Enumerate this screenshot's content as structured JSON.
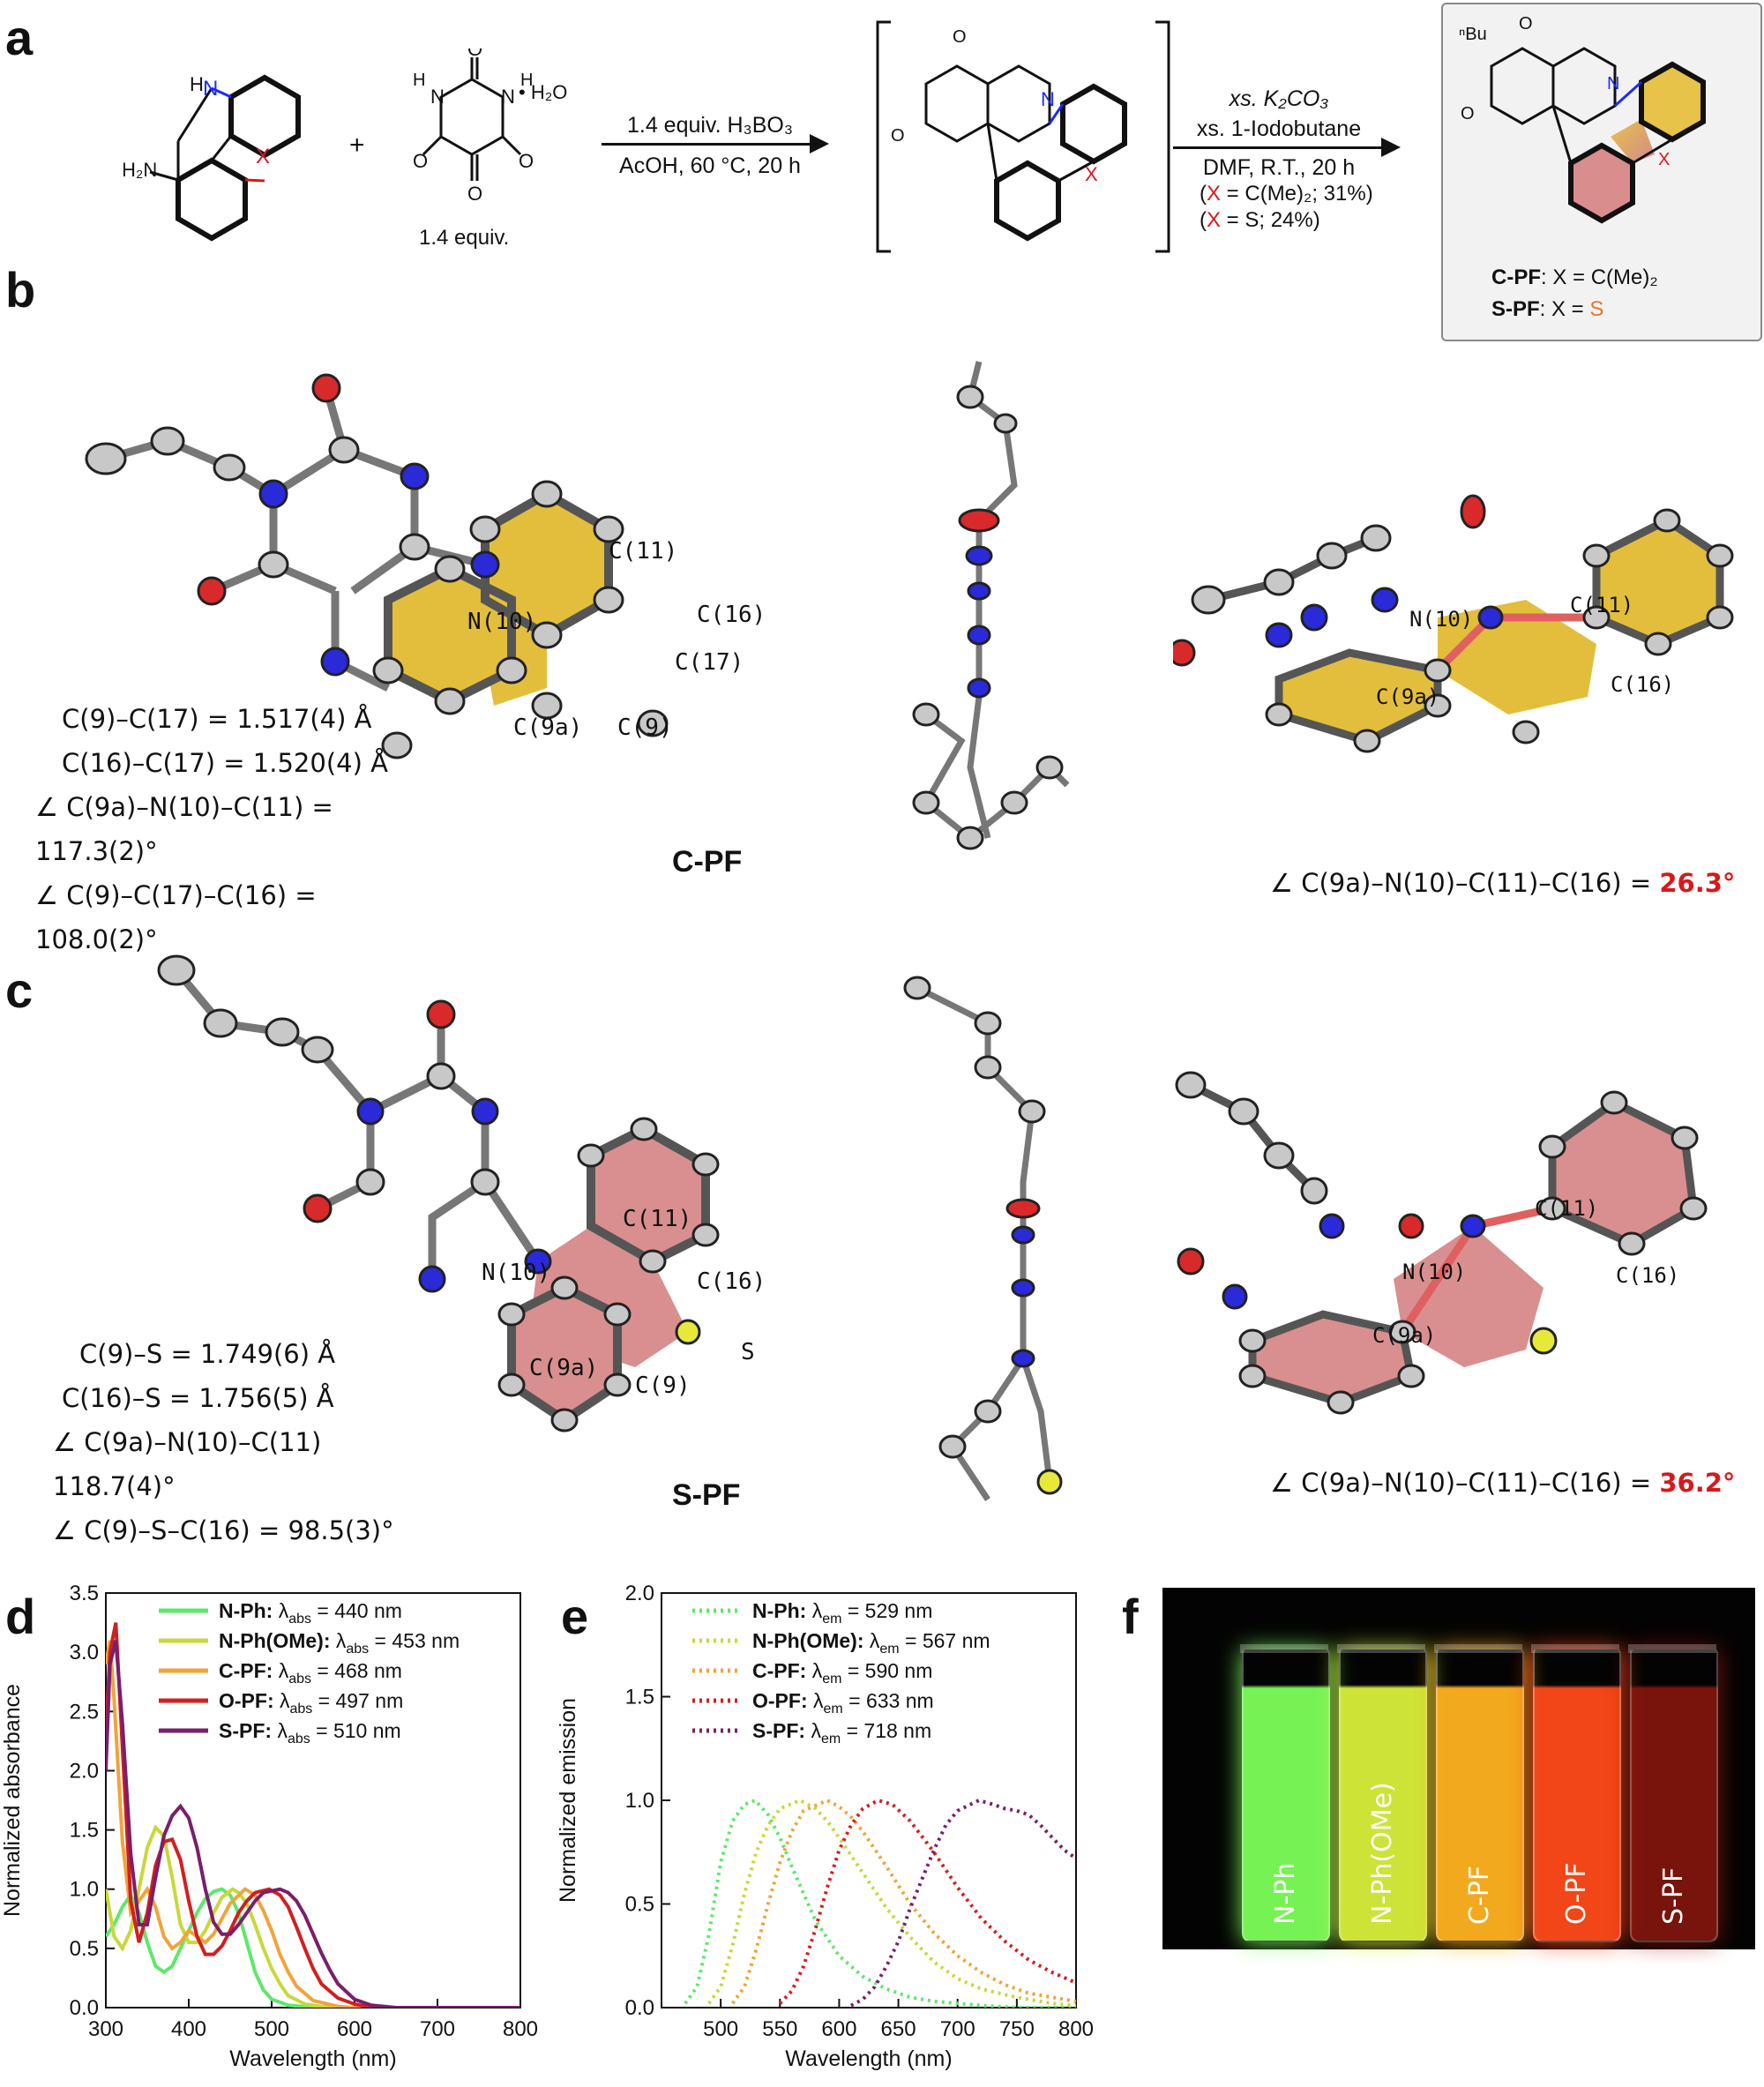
{
  "panels": {
    "a": "a",
    "b": "b",
    "c": "c",
    "d": "d",
    "e": "e",
    "f": "f"
  },
  "scheme": {
    "reactant1_label_h": "H",
    "reactant1_label_n": "N",
    "reactant1_label_nh2": "H₂N",
    "reactant1_label_x": "X",
    "plus": "+",
    "alloxan_h1": "H",
    "alloxan_h2": "H",
    "alloxan_hydrate": "• H₂O",
    "alloxan_equiv": "1.4 equiv.",
    "step1_top": "1.4 equiv. H₃BO₃",
    "step1_bottom": "AcOH, 60 °C, 20 h",
    "step2_line1": "xs. K₂CO₃",
    "step2_line2": "xs. 1-Iodobutane",
    "step2_line3": "DMF, R.T., 20 h",
    "step2_yield1_prefix": "(",
    "step2_yield1_x": "X",
    "step2_yield1_suffix": " = C(Me)₂; 31%)",
    "step2_yield2_prefix": "(",
    "step2_yield2_x": "X",
    "step2_yield2_suffix": " = S; 24%)",
    "nbu": "ⁿBu",
    "product_c_name": "C-PF",
    "product_c_def": ": X = C(Me)₂",
    "product_s_name": "S-PF",
    "product_s_def": ": X = ",
    "product_s_atom": "S"
  },
  "panel_b": {
    "geometry": [
      "C(9)–C(17) = 1.517(4) Å",
      "C(16)–C(17) = 1.520(4) Å",
      "∠ C(9a)–N(10)–C(11) = 117.3(2)°",
      "∠ C(9)–C(17)–C(16) = 108.0(2)°"
    ],
    "compound": "C-PF",
    "atom_labels": [
      "C(11)",
      "C(16)",
      "C(17)",
      "N(10)",
      "C(9a)",
      "C(9)"
    ],
    "right_labels": [
      "N(10)",
      "C(11)",
      "C(16)",
      "C(9a)"
    ],
    "dihedral_text": "∠ C(9a)–N(10)–C(11)–C(16) = ",
    "dihedral_value": "26.3°"
  },
  "panel_c": {
    "geometry": [
      "C(9)–S = 1.749(6) Å",
      "C(16)–S = 1.756(5)  Å",
      "∠ C(9a)–N(10)–C(11) 118.7(4)°",
      "∠ C(9)–S–C(16) = 98.5(3)°"
    ],
    "compound": "S-PF",
    "atom_labels": [
      "C(11)",
      "C(16)",
      "N(10)",
      "C(9a)",
      "C(9)",
      "S"
    ],
    "right_labels": [
      "C(11)",
      "N(10)",
      "C(16)",
      "C(9a)"
    ],
    "dihedral_text": "∠ C(9a)–N(10)–C(11)–C(16) = ",
    "dihedral_value": "36.2°"
  },
  "panel_f": {
    "vials": [
      "N-Ph",
      "N-Ph(OMe)",
      "C-PF",
      "O-PF",
      "S-PF"
    ],
    "colors": [
      "#7dff5a",
      "#d8f03a",
      "#ffb21f",
      "#ff4a1a",
      "#a01a10"
    ]
  },
  "chart_data": [
    {
      "type": "line",
      "panel": "d",
      "xlabel": "Wavelength (nm)",
      "ylabel": "Normalized absorbance",
      "xlim": [
        300,
        800
      ],
      "ylim": [
        0,
        3.5
      ],
      "xticks": [
        300,
        400,
        500,
        600,
        700,
        800
      ],
      "yticks": [
        0.0,
        0.5,
        1.0,
        1.5,
        2.0,
        2.5,
        3.0,
        3.5
      ],
      "legend_position": "top-right",
      "series": [
        {
          "label": "N-Ph:",
          "prop": "λ",
          "sub": "abs",
          "value": " = 440 nm",
          "color": "#5ee86a",
          "x": [
            300,
            305,
            310,
            320,
            330,
            340,
            350,
            360,
            370,
            380,
            390,
            400,
            410,
            420,
            430,
            440,
            450,
            460,
            470,
            480,
            490,
            500,
            520,
            550,
            600,
            800
          ],
          "y": [
            0.6,
            0.65,
            0.7,
            0.85,
            0.95,
            0.8,
            0.55,
            0.35,
            0.3,
            0.35,
            0.5,
            0.65,
            0.8,
            0.92,
            0.98,
            1.0,
            0.95,
            0.8,
            0.55,
            0.3,
            0.15,
            0.07,
            0.02,
            0.0,
            0.0,
            0.0
          ]
        },
        {
          "label": "N-Ph(OMe):",
          "prop": "λ",
          "sub": "abs",
          "value": " = 453 nm",
          "color": "#c8d83a",
          "x": [
            300,
            305,
            310,
            320,
            330,
            340,
            350,
            360,
            370,
            380,
            390,
            400,
            410,
            420,
            430,
            440,
            453,
            460,
            470,
            480,
            490,
            500,
            510,
            520,
            540,
            560,
            600,
            800
          ],
          "y": [
            1.0,
            0.8,
            0.6,
            0.5,
            0.65,
            1.0,
            1.35,
            1.52,
            1.45,
            1.1,
            0.7,
            0.55,
            0.55,
            0.65,
            0.8,
            0.93,
            1.0,
            0.97,
            0.88,
            0.7,
            0.5,
            0.33,
            0.2,
            0.1,
            0.03,
            0.01,
            0.0,
            0.0
          ]
        },
        {
          "label": "C-PF:",
          "prop": "λ",
          "sub": "abs",
          "value": " = 468 nm",
          "color": "#f0a43a",
          "x": [
            300,
            305,
            310,
            320,
            330,
            340,
            350,
            360,
            370,
            380,
            390,
            400,
            410,
            420,
            430,
            440,
            450,
            468,
            480,
            490,
            500,
            510,
            520,
            530,
            550,
            580,
            600,
            800
          ],
          "y": [
            2.9,
            3.1,
            2.6,
            1.4,
            0.8,
            0.9,
            1.0,
            0.85,
            0.6,
            0.5,
            0.55,
            0.65,
            0.6,
            0.55,
            0.62,
            0.75,
            0.88,
            1.0,
            0.95,
            0.82,
            0.65,
            0.45,
            0.3,
            0.18,
            0.06,
            0.01,
            0.0,
            0.0
          ]
        },
        {
          "label": "O-PF:",
          "prop": "λ",
          "sub": "abs",
          "value": " = 497 nm",
          "color": "#d21f1f",
          "x": [
            300,
            305,
            312,
            320,
            330,
            340,
            350,
            360,
            370,
            380,
            390,
            400,
            410,
            420,
            430,
            440,
            450,
            460,
            470,
            480,
            497,
            510,
            520,
            530,
            540,
            550,
            560,
            580,
            600,
            620,
            800
          ],
          "y": [
            2.3,
            3.0,
            3.25,
            2.2,
            0.9,
            0.55,
            0.8,
            1.2,
            1.4,
            1.42,
            1.25,
            0.9,
            0.6,
            0.45,
            0.45,
            0.52,
            0.65,
            0.8,
            0.9,
            0.97,
            1.0,
            0.95,
            0.85,
            0.68,
            0.5,
            0.33,
            0.2,
            0.08,
            0.03,
            0.0,
            0.0
          ]
        },
        {
          "label": "S-PF:",
          "prop": "λ",
          "sub": "abs",
          "value": " = 510 nm",
          "color": "#7a1f6a",
          "x": [
            300,
            305,
            312,
            320,
            330,
            340,
            350,
            360,
            370,
            380,
            390,
            400,
            410,
            420,
            430,
            440,
            450,
            460,
            470,
            480,
            490,
            510,
            520,
            530,
            540,
            550,
            560,
            570,
            580,
            600,
            620,
            650,
            800
          ],
          "y": [
            2.0,
            2.9,
            3.1,
            2.4,
            1.3,
            0.7,
            0.7,
            1.1,
            1.45,
            1.62,
            1.7,
            1.6,
            1.35,
            1.0,
            0.72,
            0.62,
            0.62,
            0.7,
            0.8,
            0.9,
            0.97,
            1.0,
            0.97,
            0.9,
            0.78,
            0.62,
            0.46,
            0.32,
            0.2,
            0.07,
            0.02,
            0.0,
            0.0
          ]
        }
      ]
    },
    {
      "type": "line",
      "panel": "e",
      "xlabel": "Wavelength (nm)",
      "ylabel": "Normalized emission",
      "xlim": [
        450,
        800
      ],
      "ylim": [
        0,
        2.0
      ],
      "xticks": [
        500,
        550,
        600,
        650,
        700,
        750,
        800
      ],
      "yticks": [
        0.0,
        0.5,
        1.0,
        1.5,
        2.0
      ],
      "legend_position": "top-left",
      "line_style": "dotted",
      "series": [
        {
          "label": "N-Ph:",
          "prop": "λ",
          "sub": "em",
          "value": " = 529 nm",
          "color": "#5ee86a",
          "x": [
            470,
            480,
            490,
            500,
            510,
            520,
            529,
            540,
            550,
            560,
            570,
            580,
            600,
            620,
            640,
            660,
            680,
            700,
            720,
            750,
            800
          ],
          "y": [
            0.02,
            0.1,
            0.35,
            0.7,
            0.9,
            0.98,
            1.0,
            0.93,
            0.82,
            0.68,
            0.55,
            0.42,
            0.25,
            0.15,
            0.09,
            0.05,
            0.03,
            0.02,
            0.01,
            0.0,
            0.0
          ]
        },
        {
          "label": "N-Ph(OMe):",
          "prop": "λ",
          "sub": "em",
          "value": " = 567 nm",
          "color": "#c8d83a",
          "x": [
            490,
            500,
            510,
            520,
            530,
            540,
            550,
            567,
            580,
            590,
            600,
            620,
            640,
            660,
            680,
            700,
            720,
            750,
            780,
            800
          ],
          "y": [
            0.02,
            0.1,
            0.3,
            0.55,
            0.75,
            0.88,
            0.96,
            1.0,
            0.96,
            0.9,
            0.82,
            0.65,
            0.48,
            0.34,
            0.22,
            0.14,
            0.09,
            0.05,
            0.02,
            0.01
          ]
        },
        {
          "label": "C-PF:",
          "prop": "λ",
          "sub": "em",
          "value": " = 590 nm",
          "color": "#f0a43a",
          "x": [
            510,
            520,
            530,
            540,
            550,
            560,
            570,
            590,
            600,
            610,
            620,
            640,
            660,
            680,
            700,
            720,
            740,
            760,
            780,
            800
          ],
          "y": [
            0.02,
            0.1,
            0.28,
            0.5,
            0.7,
            0.85,
            0.95,
            1.0,
            0.97,
            0.92,
            0.85,
            0.68,
            0.5,
            0.36,
            0.25,
            0.17,
            0.11,
            0.07,
            0.05,
            0.03
          ]
        },
        {
          "label": "O-PF:",
          "prop": "λ",
          "sub": "em",
          "value": " = 633 nm",
          "color": "#d21f1f",
          "x": [
            550,
            560,
            570,
            580,
            590,
            600,
            610,
            620,
            633,
            645,
            660,
            680,
            700,
            720,
            740,
            760,
            780,
            800
          ],
          "y": [
            0.02,
            0.08,
            0.2,
            0.38,
            0.58,
            0.76,
            0.88,
            0.96,
            1.0,
            0.98,
            0.9,
            0.75,
            0.58,
            0.43,
            0.32,
            0.23,
            0.17,
            0.12
          ]
        },
        {
          "label": "S-PF:",
          "prop": "λ",
          "sub": "em",
          "value": " = 718 nm",
          "color": "#7a1f6a",
          "x": [
            610,
            620,
            630,
            640,
            650,
            660,
            670,
            680,
            690,
            700,
            718,
            730,
            740,
            750,
            760,
            770,
            780,
            790,
            800
          ],
          "y": [
            0.01,
            0.04,
            0.1,
            0.2,
            0.32,
            0.48,
            0.62,
            0.76,
            0.88,
            0.95,
            1.0,
            0.98,
            0.96,
            0.95,
            0.93,
            0.88,
            0.82,
            0.76,
            0.72
          ]
        }
      ]
    }
  ]
}
